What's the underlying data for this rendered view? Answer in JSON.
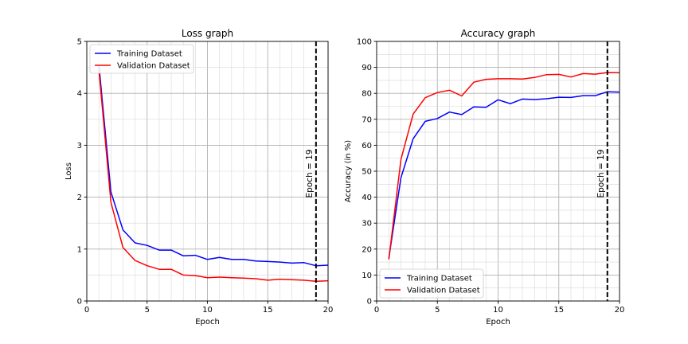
{
  "chart_data": [
    {
      "type": "line",
      "title": "Loss graph",
      "xlabel": "Epoch",
      "ylabel": "Loss",
      "xlim": [
        0,
        20
      ],
      "ylim": [
        0,
        5
      ],
      "xticks": [
        0,
        5,
        10,
        15,
        20
      ],
      "yticks": [
        0,
        1,
        2,
        3,
        4,
        5
      ],
      "grid": true,
      "legend_position": "top-left",
      "x": [
        1,
        2,
        3,
        4,
        5,
        6,
        7,
        8,
        9,
        10,
        11,
        12,
        13,
        14,
        15,
        16,
        17,
        18,
        19,
        20
      ],
      "series": [
        {
          "name": "Training Dataset",
          "color": "#0000ff",
          "values": [
            4.55,
            2.1,
            1.37,
            1.12,
            1.07,
            0.98,
            0.98,
            0.87,
            0.88,
            0.8,
            0.84,
            0.8,
            0.8,
            0.77,
            0.76,
            0.75,
            0.73,
            0.74,
            0.68,
            0.69
          ]
        },
        {
          "name": "Validation Dataset",
          "color": "#ff0000",
          "values": [
            4.45,
            1.9,
            1.03,
            0.78,
            0.68,
            0.61,
            0.61,
            0.5,
            0.49,
            0.45,
            0.46,
            0.45,
            0.44,
            0.43,
            0.4,
            0.42,
            0.41,
            0.4,
            0.38,
            0.39
          ]
        }
      ],
      "vline": {
        "x": 19,
        "label": "Epoch = 19"
      }
    },
    {
      "type": "line",
      "title": "Accuracy graph",
      "xlabel": "Epoch",
      "ylabel": "Accuracy (in %)",
      "xlim": [
        0,
        20
      ],
      "ylim": [
        0,
        100
      ],
      "xticks": [
        0,
        5,
        10,
        15,
        20
      ],
      "yticks": [
        0,
        10,
        20,
        30,
        40,
        50,
        60,
        70,
        80,
        90,
        100
      ],
      "grid": true,
      "legend_position": "bottom-left",
      "x": [
        1,
        2,
        3,
        4,
        5,
        6,
        7,
        8,
        9,
        10,
        11,
        12,
        13,
        14,
        15,
        16,
        17,
        18,
        19,
        20
      ],
      "series": [
        {
          "name": "Training Dataset",
          "color": "#0000ff",
          "values": [
            16.5,
            47.5,
            62.5,
            69.2,
            70.3,
            72.8,
            71.8,
            74.8,
            74.6,
            77.5,
            76.0,
            77.8,
            77.6,
            77.9,
            78.5,
            78.4,
            79.1,
            79.1,
            80.6,
            80.5
          ]
        },
        {
          "name": "Validation Dataset",
          "color": "#ff0000",
          "values": [
            16.0,
            54.5,
            72.0,
            78.3,
            80.3,
            81.2,
            79.0,
            84.3,
            85.4,
            85.6,
            85.6,
            85.5,
            86.1,
            87.2,
            87.3,
            86.3,
            87.6,
            87.4,
            88.0,
            87.9
          ]
        }
      ],
      "vline": {
        "x": 19,
        "label": "Epoch = 19"
      }
    }
  ]
}
